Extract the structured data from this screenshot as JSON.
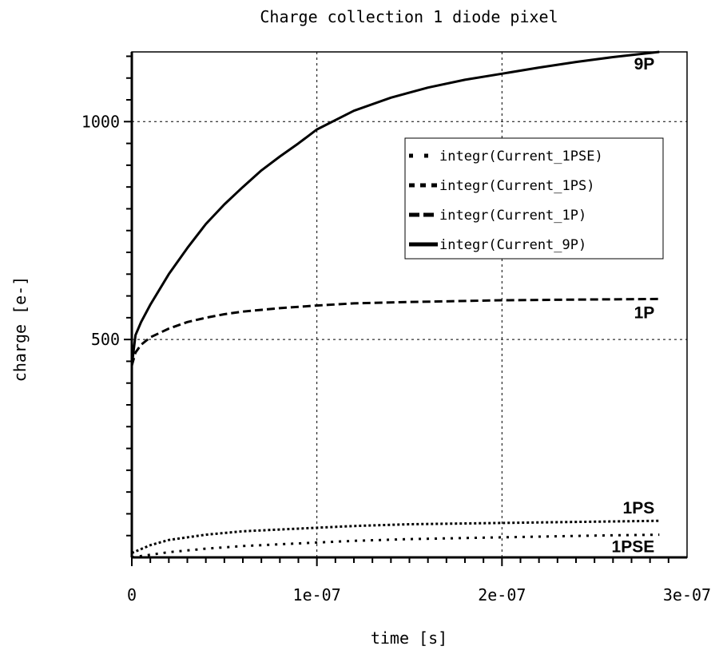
{
  "chart_data": {
    "type": "line",
    "title": "Charge collection 1 diode pixel",
    "xlabel": "time [s]",
    "ylabel": "charge [e-]",
    "xlim": [
      0,
      3e-07
    ],
    "ylim": [
      0,
      1160
    ],
    "grid": true,
    "legend_position": "upper-right",
    "x_ticks": [
      {
        "value": 0,
        "label": "0"
      },
      {
        "value": 1e-07,
        "label": "1e-07"
      },
      {
        "value": 2e-07,
        "label": "2e-07"
      },
      {
        "value": 3e-07,
        "label": "3e-07"
      }
    ],
    "y_ticks": [
      {
        "value": 500,
        "label": "500"
      },
      {
        "value": 1000,
        "label": "1000"
      }
    ],
    "series": [
      {
        "name": "integr(Current_9P)",
        "end_label": "9P",
        "style": "solid",
        "x": [
          0,
          2e-09,
          5e-09,
          1e-08,
          2e-08,
          3e-08,
          4e-08,
          5e-08,
          6e-08,
          7e-08,
          8e-08,
          9e-08,
          1e-07,
          1.2e-07,
          1.4e-07,
          1.6e-07,
          1.8e-07,
          2e-07,
          2.2e-07,
          2.4e-07,
          2.6e-07,
          2.85e-07
        ],
        "y": [
          440,
          510,
          540,
          580,
          650,
          710,
          765,
          810,
          850,
          888,
          920,
          950,
          982,
          1025,
          1055,
          1078,
          1096,
          1110,
          1124,
          1137,
          1148,
          1160
        ]
      },
      {
        "name": "integr(Current_1P)",
        "end_label": "1P",
        "style": "dashed",
        "x": [
          0,
          2e-09,
          5e-09,
          1e-08,
          2e-08,
          3e-08,
          4e-08,
          5e-08,
          6e-08,
          8e-08,
          1e-07,
          1.2e-07,
          1.5e-07,
          2e-07,
          2.5e-07,
          2.85e-07
        ],
        "y": [
          440,
          470,
          488,
          505,
          525,
          540,
          550,
          558,
          564,
          572,
          578,
          583,
          586,
          590,
          592,
          593
        ]
      },
      {
        "name": "integr(Current_1PS)",
        "end_label": "1PS",
        "style": "dotted",
        "x": [
          0,
          1e-08,
          2e-08,
          4e-08,
          6e-08,
          8e-08,
          1e-07,
          1.2e-07,
          1.5e-07,
          2e-07,
          2.5e-07,
          2.85e-07
        ],
        "y": [
          10,
          28,
          40,
          52,
          60,
          64,
          68,
          72,
          76,
          79,
          82,
          84
        ]
      },
      {
        "name": "integr(Current_1PSE)",
        "end_label": "1PSE",
        "style": "sparse-dotted",
        "x": [
          0,
          1e-08,
          2e-08,
          4e-08,
          6e-08,
          8e-08,
          1e-07,
          1.2e-07,
          1.5e-07,
          2e-07,
          2.5e-07,
          2.85e-07
        ],
        "y": [
          0,
          6,
          12,
          20,
          26,
          30,
          34,
          38,
          42,
          46,
          50,
          52
        ]
      }
    ]
  }
}
